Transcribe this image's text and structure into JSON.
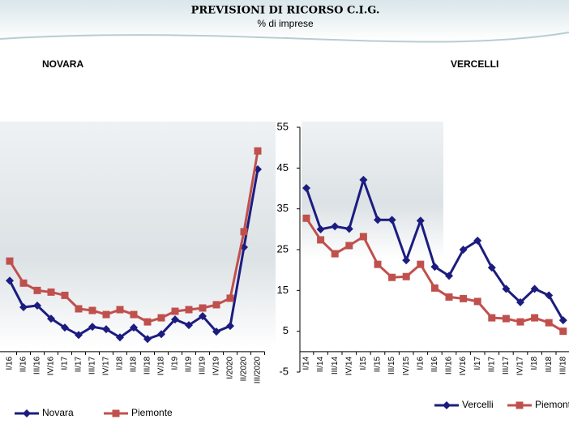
{
  "header": {
    "title": "PREVISIONI DI RICORSO C.I.G.",
    "subtitle": "% di imprese"
  },
  "chart_data": [
    {
      "type": "line",
      "title": "NOVARA",
      "categories": [
        "I/16",
        "II/16",
        "III/16",
        "IV/16",
        "I/17",
        "II/17",
        "III/17",
        "IV/17",
        "I/18",
        "II/18",
        "III/18",
        "IV/18",
        "I/19",
        "II/19",
        "III/19",
        "IV/19",
        "I/2020",
        "II/2020",
        "III/2020"
      ],
      "ylim": [
        -5,
        55
      ],
      "series": [
        {
          "name": "Novara",
          "color": "#1c1c80",
          "marker": "diamond",
          "values": [
            17.4,
            10.9,
            11.3,
            8.1,
            5.9,
            4.1,
            6.1,
            5.5,
            3.5,
            5.9,
            3.1,
            4.3,
            7.9,
            6.5,
            8.7,
            4.9,
            6.3,
            25.6,
            44.7
          ]
        },
        {
          "name": "Piemonte",
          "color": "#c0504d",
          "marker": "square",
          "values": [
            22.2,
            16.8,
            15.0,
            14.6,
            13.8,
            10.5,
            10.1,
            9.1,
            10.3,
            9.1,
            7.3,
            8.3,
            9.9,
            10.3,
            10.7,
            11.5,
            13.1,
            29.4,
            49.2
          ]
        }
      ]
    },
    {
      "type": "line",
      "title": "VERCELLI",
      "categories": [
        "I/14",
        "II/14",
        "III/14",
        "IV/14",
        "I/15",
        "II/15",
        "III/15",
        "IV/15",
        "I/16",
        "II/16",
        "III/16",
        "IV/16",
        "I/17",
        "II/17",
        "III/17",
        "IV/17",
        "I/18",
        "II/18",
        "III/18"
      ],
      "ylim": [
        -5,
        55
      ],
      "yticks": [
        -5,
        5,
        15,
        25,
        35,
        45,
        55
      ],
      "series": [
        {
          "name": "Vercelli",
          "color": "#1c1c80",
          "marker": "diamond",
          "values": [
            40.1,
            30.0,
            30.7,
            30.1,
            42.1,
            32.3,
            32.3,
            22.4,
            32.1,
            20.8,
            18.6,
            25.0,
            27.2,
            20.6,
            15.4,
            12.1,
            15.4,
            13.8,
            7.7
          ]
        },
        {
          "name": "Piemonte",
          "color": "#c0504d",
          "marker": "square",
          "values": [
            32.7,
            27.4,
            24.0,
            26.0,
            28.2,
            21.4,
            18.2,
            18.4,
            21.4,
            15.6,
            13.4,
            13.0,
            12.3,
            8.3,
            8.1,
            7.3,
            8.3,
            7.1,
            5.0
          ]
        }
      ]
    }
  ]
}
